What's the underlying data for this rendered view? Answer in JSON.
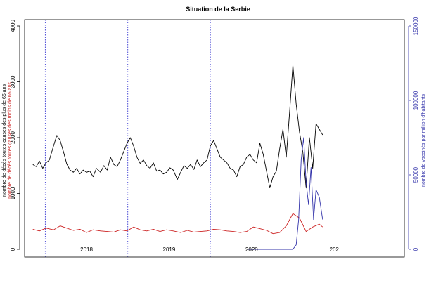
{
  "chart_data": {
    "type": "line",
    "title": "Situation de la Serbie",
    "ylabel_left": [
      "nombre de décès toutes causes des plus de 65 ans",
      "nombre de décès toutes causes des moins de 65 ans"
    ],
    "ylabel_right": "nombre de vaccinés par million d'habitants",
    "ylim_left": [
      0,
      4000
    ],
    "ylim_right": [
      0,
      150000
    ],
    "left_ticks": [
      "0",
      "1000",
      "2000",
      "3000",
      "4000"
    ],
    "right_ticks": [
      "0",
      "50000",
      "100000",
      "150000"
    ],
    "x_range": [
      2017.25,
      2021.85
    ],
    "year_labels": [
      {
        "text": "2018",
        "x": 2018.0
      },
      {
        "text": "2019",
        "x": 2019.0
      },
      {
        "text": "2020",
        "x": 2020.0
      },
      {
        "text": "202",
        "x": 2021.0
      }
    ],
    "year_boundaries": [
      2017.5,
      2018.5,
      2019.5,
      2020.5
    ],
    "colors": {
      "over65": "#000000",
      "under65": "#cc2222",
      "vaccinated": "#3333aa",
      "boundary": "#2222cc",
      "axis": "#000000"
    },
    "series": [
      {
        "name": "nombre de décès toutes causes des plus de 65 ans",
        "axis": "left",
        "color": "#000000",
        "x": [
          2017.35,
          2017.39,
          2017.43,
          2017.47,
          2017.51,
          2017.55,
          2017.6,
          2017.64,
          2017.68,
          2017.72,
          2017.76,
          2017.8,
          2017.84,
          2017.88,
          2017.92,
          2017.96,
          2018.0,
          2018.04,
          2018.08,
          2018.12,
          2018.17,
          2018.21,
          2018.25,
          2018.29,
          2018.33,
          2018.37,
          2018.41,
          2018.45,
          2018.49,
          2018.53,
          2018.57,
          2018.61,
          2018.65,
          2018.69,
          2018.73,
          2018.77,
          2018.81,
          2018.85,
          2018.89,
          2018.93,
          2018.97,
          2019.01,
          2019.05,
          2019.1,
          2019.14,
          2019.18,
          2019.22,
          2019.26,
          2019.3,
          2019.34,
          2019.38,
          2019.42,
          2019.46,
          2019.5,
          2019.54,
          2019.58,
          2019.62,
          2019.66,
          2019.7,
          2019.74,
          2019.78,
          2019.82,
          2019.86,
          2019.9,
          2019.94,
          2019.98,
          2020.02,
          2020.06,
          2020.1,
          2020.14,
          2020.18,
          2020.22,
          2020.26,
          2020.3,
          2020.34,
          2020.38,
          2020.42,
          2020.46,
          2020.5,
          2020.54,
          2020.58,
          2020.62,
          2020.66,
          2020.7,
          2020.74,
          2020.78,
          2020.82,
          2020.86
        ],
        "values": [
          1520,
          1480,
          1580,
          1450,
          1550,
          1600,
          1850,
          2040,
          1950,
          1750,
          1530,
          1420,
          1380,
          1450,
          1350,
          1420,
          1380,
          1400,
          1300,
          1450,
          1380,
          1500,
          1420,
          1650,
          1520,
          1480,
          1600,
          1750,
          1900,
          2000,
          1850,
          1650,
          1540,
          1600,
          1500,
          1450,
          1550,
          1400,
          1420,
          1350,
          1380,
          1460,
          1420,
          1250,
          1380,
          1500,
          1450,
          1520,
          1430,
          1600,
          1480,
          1550,
          1600,
          1850,
          1950,
          1800,
          1650,
          1600,
          1550,
          1450,
          1420,
          1300,
          1480,
          1520,
          1650,
          1700,
          1600,
          1550,
          1900,
          1700,
          1400,
          1100,
          1300,
          1400,
          1800,
          2150,
          1650,
          2450,
          3300,
          2600,
          2100,
          1750,
          1100,
          2000,
          1450,
          2250,
          2150,
          2050
        ]
      },
      {
        "name": "nombre de décès toutes causes des moins de 65 ans",
        "axis": "left",
        "color": "#cc2222",
        "x": [
          2017.35,
          2017.43,
          2017.51,
          2017.6,
          2017.68,
          2017.76,
          2017.84,
          2017.92,
          2018.0,
          2018.08,
          2018.17,
          2018.25,
          2018.33,
          2018.41,
          2018.49,
          2018.57,
          2018.65,
          2018.73,
          2018.81,
          2018.89,
          2018.97,
          2019.05,
          2019.14,
          2019.22,
          2019.3,
          2019.38,
          2019.46,
          2019.54,
          2019.62,
          2019.7,
          2019.78,
          2019.86,
          2019.94,
          2020.02,
          2020.1,
          2020.18,
          2020.26,
          2020.34,
          2020.42,
          2020.5,
          2020.58,
          2020.66,
          2020.74,
          2020.82,
          2020.86
        ],
        "values": [
          360,
          330,
          380,
          350,
          420,
          380,
          340,
          360,
          300,
          350,
          330,
          320,
          310,
          350,
          330,
          400,
          350,
          330,
          360,
          320,
          350,
          330,
          300,
          340,
          310,
          320,
          330,
          360,
          350,
          330,
          320,
          300,
          320,
          400,
          370,
          340,
          280,
          300,
          420,
          640,
          560,
          320,
          400,
          450,
          400
        ]
      },
      {
        "name": "nombre de vaccinés par million d'habitants",
        "axis": "right",
        "color": "#3333aa",
        "x": [
          2019.95,
          2020.5,
          2020.54,
          2020.57,
          2020.6,
          2020.63,
          2020.66,
          2020.69,
          2020.72,
          2020.75,
          2020.78,
          2020.82,
          2020.86
        ],
        "values": [
          0,
          0,
          3000,
          20000,
          60000,
          75000,
          45000,
          30000,
          55000,
          20000,
          40000,
          35000,
          20000
        ]
      }
    ]
  }
}
